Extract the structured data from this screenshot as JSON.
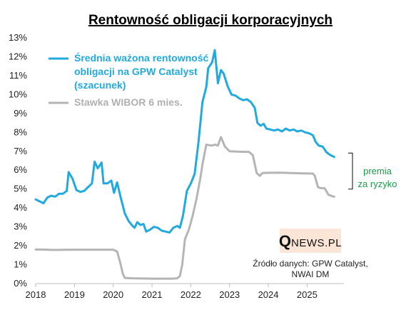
{
  "chart_data": {
    "type": "line",
    "title": "Rentowność obligacji korporacyjnych",
    "x_ticks": [
      "2018",
      "2019",
      "2020",
      "2021",
      "2022",
      "2023",
      "2024",
      "2025"
    ],
    "y_ticks": [
      "0%",
      "1%",
      "2%",
      "3%",
      "4%",
      "5%",
      "6%",
      "7%",
      "8%",
      "9%",
      "10%",
      "11%",
      "12%",
      "13%"
    ],
    "xlim": [
      2018.0,
      2025.95
    ],
    "ylim": [
      0,
      13
    ],
    "series": [
      {
        "name": "Średnia ważona rentowność obligacji na GPW Catalyst (szacunek)",
        "legend_lines": [
          "Średnia ważona rentowność",
          "obligacji na GPW Catalyst",
          "(szacunek)"
        ],
        "color": "#22aadd",
        "points": [
          [
            2018.0,
            4.45
          ],
          [
            2018.1,
            4.35
          ],
          [
            2018.2,
            4.25
          ],
          [
            2018.3,
            4.55
          ],
          [
            2018.4,
            4.65
          ],
          [
            2018.5,
            4.6
          ],
          [
            2018.6,
            4.75
          ],
          [
            2018.7,
            4.75
          ],
          [
            2018.8,
            4.9
          ],
          [
            2018.85,
            5.9
          ],
          [
            2018.95,
            5.55
          ],
          [
            2019.05,
            4.95
          ],
          [
            2019.15,
            4.85
          ],
          [
            2019.25,
            4.9
          ],
          [
            2019.35,
            5.1
          ],
          [
            2019.45,
            5.3
          ],
          [
            2019.52,
            6.45
          ],
          [
            2019.6,
            6.1
          ],
          [
            2019.7,
            6.4
          ],
          [
            2019.75,
            5.3
          ],
          [
            2019.85,
            5.3
          ],
          [
            2019.95,
            5.45
          ],
          [
            2020.02,
            4.8
          ],
          [
            2020.1,
            5.35
          ],
          [
            2020.2,
            4.5
          ],
          [
            2020.3,
            3.7
          ],
          [
            2020.4,
            3.3
          ],
          [
            2020.5,
            3.05
          ],
          [
            2020.55,
            2.95
          ],
          [
            2020.62,
            3.25
          ],
          [
            2020.7,
            3.1
          ],
          [
            2020.78,
            3.15
          ],
          [
            2020.85,
            2.75
          ],
          [
            2020.95,
            2.85
          ],
          [
            2021.05,
            3.0
          ],
          [
            2021.15,
            2.95
          ],
          [
            2021.25,
            2.8
          ],
          [
            2021.35,
            2.75
          ],
          [
            2021.45,
            2.7
          ],
          [
            2021.55,
            2.95
          ],
          [
            2021.65,
            3.05
          ],
          [
            2021.72,
            2.95
          ],
          [
            2021.8,
            3.6
          ],
          [
            2021.9,
            4.9
          ],
          [
            2022.0,
            5.3
          ],
          [
            2022.1,
            5.8
          ],
          [
            2022.2,
            7.5
          ],
          [
            2022.3,
            9.6
          ],
          [
            2022.4,
            10.4
          ],
          [
            2022.45,
            11.4
          ],
          [
            2022.55,
            11.7
          ],
          [
            2022.62,
            12.35
          ],
          [
            2022.7,
            10.6
          ],
          [
            2022.78,
            11.3
          ],
          [
            2022.85,
            11.1
          ],
          [
            2022.95,
            10.45
          ],
          [
            2023.05,
            10.0
          ],
          [
            2023.15,
            9.95
          ],
          [
            2023.25,
            9.8
          ],
          [
            2023.35,
            9.7
          ],
          [
            2023.45,
            9.75
          ],
          [
            2023.55,
            9.6
          ],
          [
            2023.65,
            9.3
          ],
          [
            2023.72,
            8.5
          ],
          [
            2023.8,
            8.35
          ],
          [
            2023.88,
            8.45
          ],
          [
            2023.95,
            8.2
          ],
          [
            2024.05,
            8.15
          ],
          [
            2024.15,
            8.1
          ],
          [
            2024.25,
            8.15
          ],
          [
            2024.35,
            8.05
          ],
          [
            2024.45,
            8.2
          ],
          [
            2024.55,
            8.1
          ],
          [
            2024.65,
            8.15
          ],
          [
            2024.75,
            8.05
          ],
          [
            2024.85,
            8.1
          ],
          [
            2024.95,
            8.0
          ],
          [
            2025.05,
            7.95
          ],
          [
            2025.15,
            7.85
          ],
          [
            2025.22,
            7.5
          ],
          [
            2025.3,
            7.3
          ],
          [
            2025.4,
            7.25
          ],
          [
            2025.5,
            6.95
          ],
          [
            2025.6,
            6.8
          ],
          [
            2025.7,
            6.7
          ]
        ]
      },
      {
        "name": "Stawka WIBOR 6 mies.",
        "legend_lines": [
          "Stawka WIBOR 6 mies."
        ],
        "color": "#b5b5b5",
        "points": [
          [
            2018.0,
            1.8
          ],
          [
            2018.2,
            1.8
          ],
          [
            2018.4,
            1.78
          ],
          [
            2018.6,
            1.78
          ],
          [
            2018.8,
            1.79
          ],
          [
            2019.0,
            1.79
          ],
          [
            2019.5,
            1.79
          ],
          [
            2019.9,
            1.79
          ],
          [
            2020.0,
            1.79
          ],
          [
            2020.1,
            1.7
          ],
          [
            2020.18,
            1.1
          ],
          [
            2020.25,
            0.5
          ],
          [
            2020.3,
            0.3
          ],
          [
            2020.5,
            0.28
          ],
          [
            2021.0,
            0.26
          ],
          [
            2021.5,
            0.26
          ],
          [
            2021.65,
            0.28
          ],
          [
            2021.72,
            0.4
          ],
          [
            2021.78,
            1.0
          ],
          [
            2021.85,
            2.35
          ],
          [
            2021.95,
            2.85
          ],
          [
            2022.05,
            3.6
          ],
          [
            2022.15,
            4.5
          ],
          [
            2022.25,
            5.6
          ],
          [
            2022.3,
            6.3
          ],
          [
            2022.4,
            7.35
          ],
          [
            2022.55,
            7.3
          ],
          [
            2022.62,
            7.35
          ],
          [
            2022.7,
            7.3
          ],
          [
            2022.78,
            7.75
          ],
          [
            2022.88,
            7.25
          ],
          [
            2023.0,
            7.0
          ],
          [
            2023.2,
            6.98
          ],
          [
            2023.4,
            6.97
          ],
          [
            2023.5,
            6.97
          ],
          [
            2023.6,
            6.8
          ],
          [
            2023.7,
            5.85
          ],
          [
            2023.78,
            5.7
          ],
          [
            2023.85,
            5.85
          ],
          [
            2024.0,
            5.86
          ],
          [
            2024.3,
            5.87
          ],
          [
            2024.6,
            5.85
          ],
          [
            2024.9,
            5.83
          ],
          [
            2025.15,
            5.82
          ],
          [
            2025.2,
            5.7
          ],
          [
            2025.28,
            5.1
          ],
          [
            2025.35,
            5.05
          ],
          [
            2025.45,
            5.05
          ],
          [
            2025.55,
            4.7
          ],
          [
            2025.65,
            4.62
          ],
          [
            2025.7,
            4.6
          ]
        ]
      }
    ],
    "annotation": {
      "lines": [
        "premia",
        "za ryzyko"
      ],
      "color": "#1a9a48",
      "bracket_range": [
        5.0,
        6.9
      ]
    },
    "logo": {
      "big_letter": "Q",
      "rest": "NEWS.PL",
      "background": "#fbe5d6"
    },
    "source_lines": [
      "Źródło danych: GPW Catalyst,",
      "NWAI DM"
    ]
  }
}
